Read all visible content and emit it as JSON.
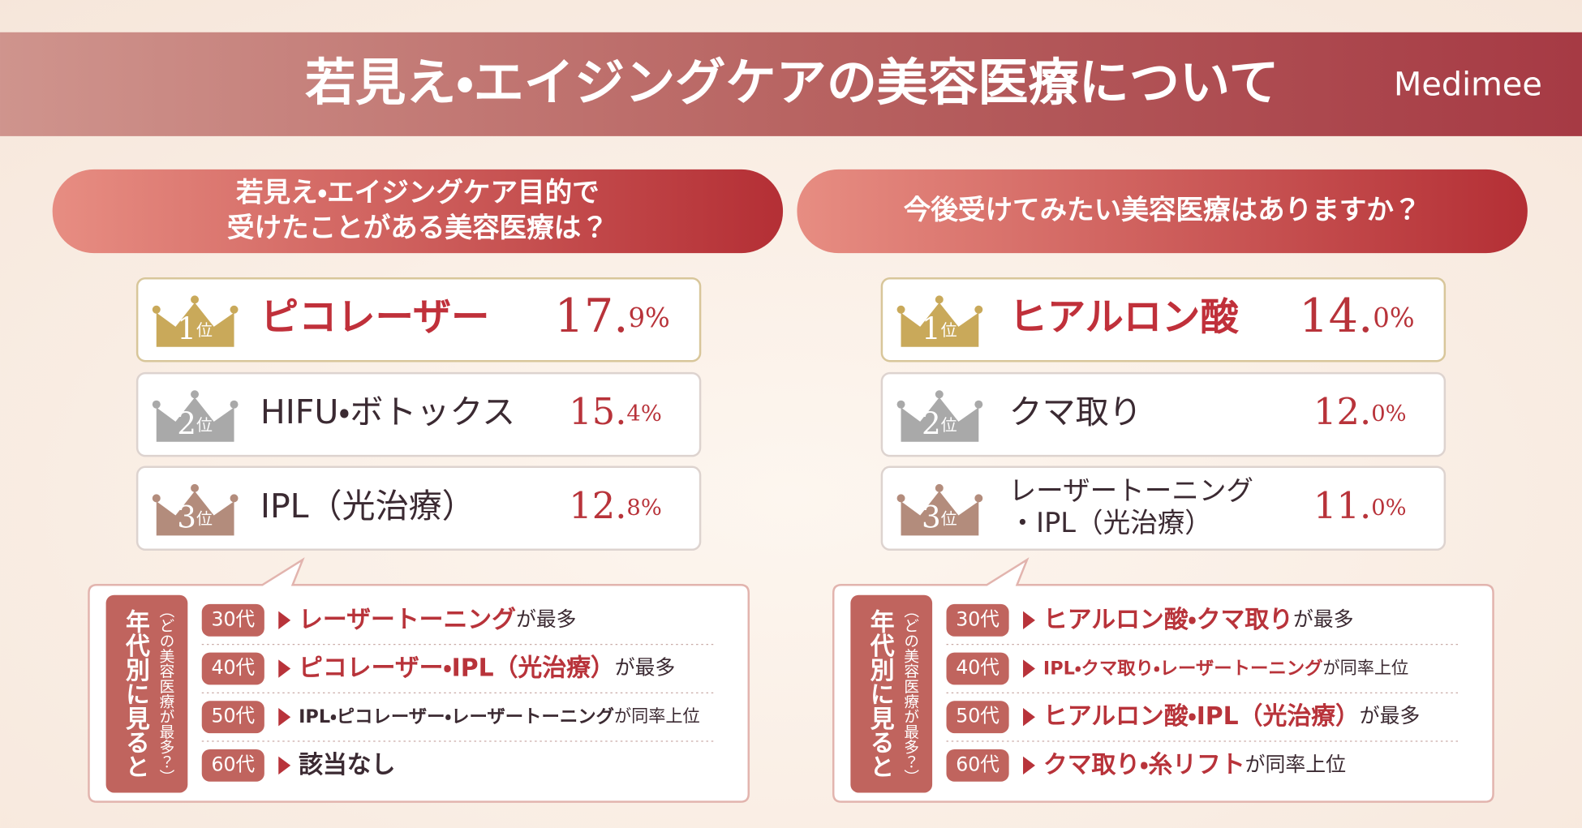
{
  "header": {
    "title": "若見え・エイジングケアの美容医療について",
    "brand": "Medimee"
  },
  "panels": [
    {
      "question": [
        "若見え・エイジングケア目的で",
        "受けたことがある美容医療は？"
      ],
      "rankings": [
        {
          "rank": "1",
          "rank_unit": "位",
          "name": [
            "ピコレーザー"
          ],
          "percent_main": "17.",
          "percent_sub": "9%"
        },
        {
          "rank": "2",
          "rank_unit": "位",
          "name": [
            "HIFU・ボトックス"
          ],
          "percent_main": "15.",
          "percent_sub": "4%"
        },
        {
          "rank": "3",
          "rank_unit": "位",
          "name": [
            "IPL（光治療）"
          ],
          "percent_main": "12.",
          "percent_sub": "8%"
        }
      ],
      "by_age": {
        "label": "年代別に見ると",
        "sublabel": "（どの美容医療が最多？）",
        "rows": [
          {
            "age": "30代",
            "highlight": "レーザートーニング",
            "suffix": "が最多"
          },
          {
            "age": "40代",
            "highlight": "ピコレーザー・IPL（光治療）",
            "suffix": "が最多"
          },
          {
            "age": "50代",
            "highlight": "IPL・ピコレーザー・レーザートーニング",
            "suffix": "が同率上位"
          },
          {
            "age": "60代",
            "highlight": "該当なし"
          }
        ]
      }
    },
    {
      "question": [
        "今後受けてみたい美容医療はありますか？"
      ],
      "rankings": [
        {
          "rank": "1",
          "rank_unit": "位",
          "name": [
            "ヒアルロン酸"
          ],
          "percent_main": "14.",
          "percent_sub": "0%"
        },
        {
          "rank": "2",
          "rank_unit": "位",
          "name": [
            "クマ取り"
          ],
          "percent_main": "12.",
          "percent_sub": "0%"
        },
        {
          "rank": "3",
          "rank_unit": "位",
          "name": [
            "レーザートーニング",
            "・IPL（光治療）"
          ],
          "percent_main": "11.",
          "percent_sub": "0%"
        }
      ],
      "by_age": {
        "label": "年代別に見ると",
        "sublabel": "（どの美容医療が最多？）",
        "rows": [
          {
            "age": "30代",
            "highlight": "ヒアルロン酸・クマ取り",
            "suffix": "が最多"
          },
          {
            "age": "40代",
            "highlight": "IPL・クマ取り・レーザートーニング",
            "suffix": "が同率上位"
          },
          {
            "age": "50代",
            "highlight": "ヒアルロン酸・IPL（光治療）",
            "suffix": "が最多"
          },
          {
            "age": "60代",
            "highlight": "クマ取り・糸リフト",
            "suffix": "が同率上位"
          }
        ]
      }
    }
  ]
}
